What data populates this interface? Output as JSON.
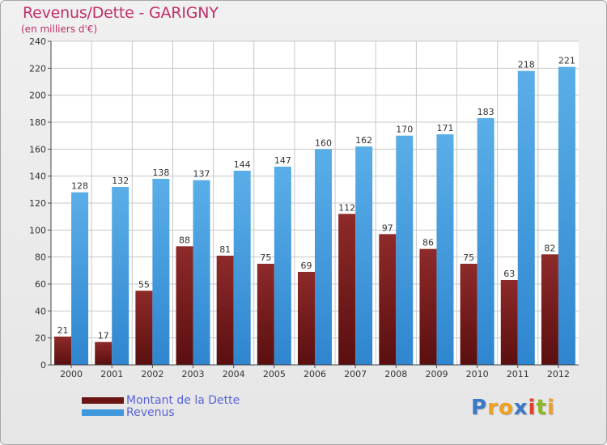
{
  "header": {
    "title": "Revenus/Dette - GARIGNY",
    "subtitle": "(en milliers d'€)"
  },
  "colors": {
    "debt": "#7a1f1f",
    "revenue": "#3f97dc",
    "title": "#c0306a",
    "legend_text": "#5a63d8"
  },
  "logo": {
    "text": "Proxiti",
    "letters": [
      "P",
      "r",
      "o",
      "x",
      "i",
      "t",
      "i"
    ],
    "letter_colors": [
      "#3a78c8",
      "#f0a020",
      "#f0a020",
      "#3a78c8",
      "#e0402a",
      "#8ab820",
      "#f0a020"
    ]
  },
  "chart_data": {
    "type": "bar",
    "title": "Revenus/Dette - GARIGNY",
    "subtitle": "(en milliers d'€)",
    "categories": [
      "2000",
      "2001",
      "2002",
      "2003",
      "2004",
      "2005",
      "2006",
      "2007",
      "2008",
      "2009",
      "2010",
      "2011",
      "2012"
    ],
    "series": [
      {
        "name": "Montant de la Dette",
        "color": "#7a1f1f",
        "values": [
          21,
          17,
          55,
          88,
          81,
          75,
          69,
          112,
          97,
          86,
          75,
          63,
          82
        ]
      },
      {
        "name": "Revenus",
        "color": "#3f97dc",
        "values": [
          128,
          132,
          138,
          137,
          144,
          147,
          160,
          162,
          170,
          171,
          183,
          218,
          221
        ]
      }
    ],
    "ylim": [
      0,
      240
    ],
    "yticks": [
      0,
      20,
      40,
      60,
      80,
      100,
      120,
      140,
      160,
      180,
      200,
      220,
      240
    ],
    "grid": true,
    "legend_position": "bottom-left"
  }
}
